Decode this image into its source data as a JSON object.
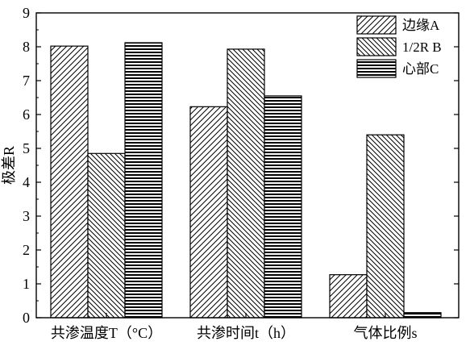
{
  "chart_data": {
    "type": "bar",
    "categories": [
      "共渗温度T（°C）",
      "共渗时间t（h）",
      "气体比例s"
    ],
    "series": [
      {
        "name": "边缘A",
        "values": [
          8.02,
          6.23,
          1.27
        ]
      },
      {
        "name": "1/2R B",
        "values": [
          4.85,
          7.93,
          5.4
        ]
      },
      {
        "name": "心部C",
        "values": [
          8.12,
          6.55,
          0.15
        ]
      }
    ],
    "title": "",
    "xlabel": "",
    "ylabel": "极差R",
    "ylim": [
      0,
      9
    ],
    "yticks": [
      0,
      1,
      2,
      3,
      4,
      5,
      6,
      7,
      8,
      9
    ],
    "legend_position": "top-right",
    "grid": false,
    "patterns": [
      "diagonal-up",
      "diagonal-down",
      "horizontal"
    ]
  }
}
